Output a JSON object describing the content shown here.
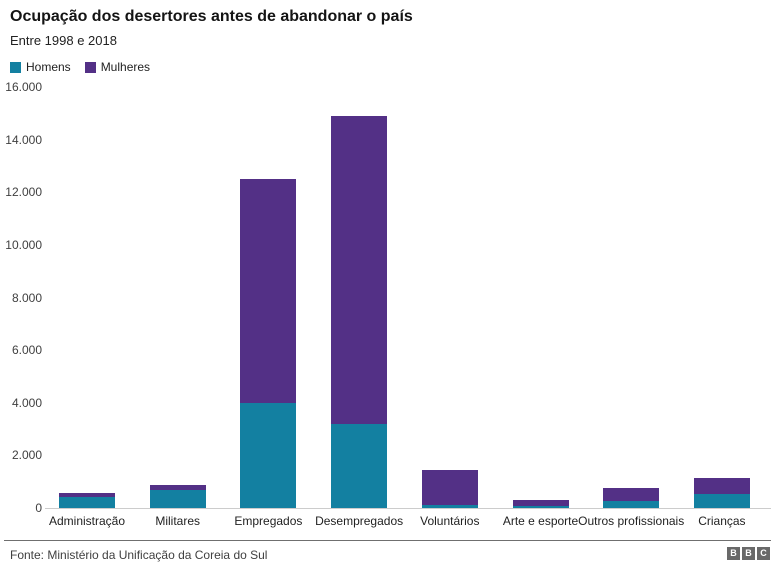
{
  "header": {
    "title": "Ocupação dos desertores antes de abandonar o país",
    "subtitle": "Entre 1998 e 2018"
  },
  "chart_data": {
    "type": "bar",
    "stacked": true,
    "title": "Ocupação dos desertores antes de abandonar o país",
    "subtitle": "Entre 1998 e 2018",
    "categories": [
      "Administração",
      "Militares",
      "Empregados",
      "Desempregados",
      "Voluntários",
      "Arte e esporte",
      "Outros profissionais",
      "Crianças"
    ],
    "series": [
      {
        "name": "Homens",
        "color": "#1380A1",
        "values": [
          420,
          680,
          4000,
          3200,
          110,
          80,
          280,
          530
        ]
      },
      {
        "name": "Mulheres",
        "color": "#533086",
        "values": [
          150,
          190,
          8500,
          11700,
          1330,
          230,
          480,
          610
        ]
      }
    ],
    "xlabel": "",
    "ylabel": "",
    "ylim": [
      0,
      16000
    ],
    "ytick_step": 2000,
    "ytick_labels": [
      "0",
      "2.000",
      "4.000",
      "6.000",
      "8.000",
      "10.000",
      "12.000",
      "14.000",
      "16.000"
    ],
    "grid": false,
    "legend_position": "top-left"
  },
  "footer": {
    "source": "Fonte: Ministério da Unificação da Coreia do Sul",
    "logo_letters": [
      "B",
      "B",
      "C"
    ]
  }
}
